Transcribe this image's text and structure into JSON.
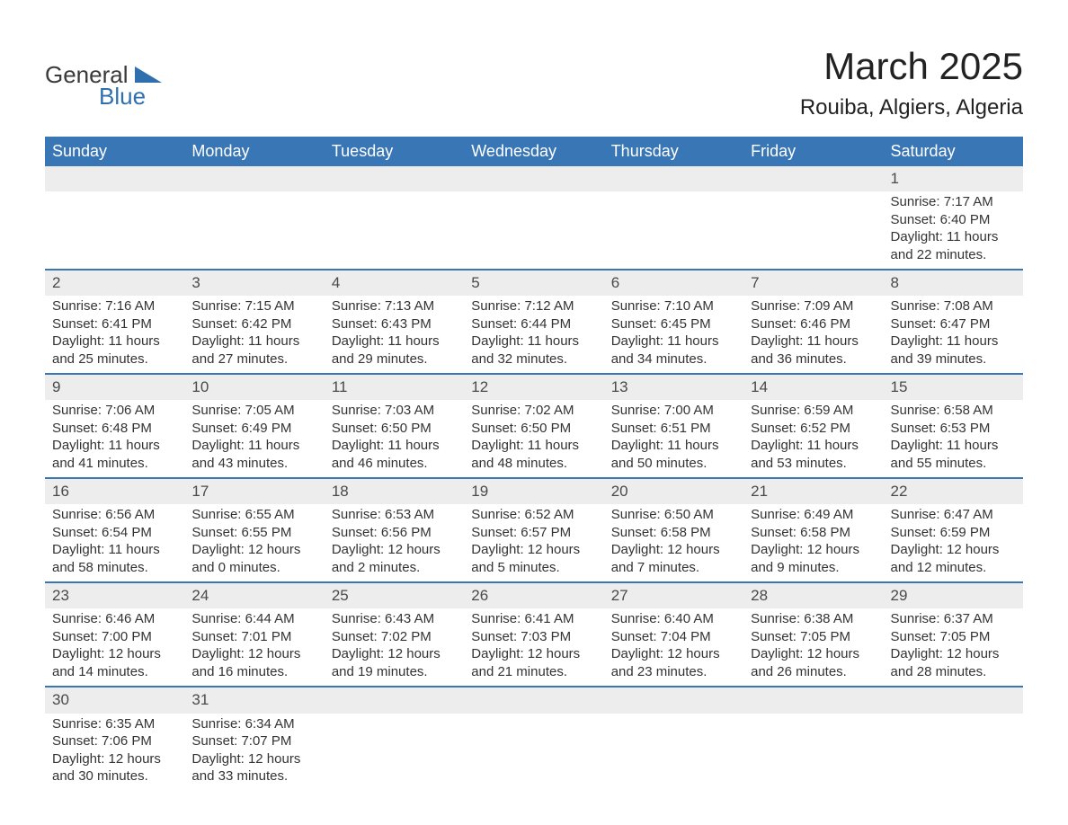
{
  "brand": {
    "word1": "General",
    "word2": "Blue",
    "word1_color": "#3a3a3a",
    "word2_color": "#2f6fae",
    "triangle_color": "#2f6fae"
  },
  "header": {
    "month_title": "March 2025",
    "location": "Rouiba, Algiers, Algeria"
  },
  "calendar": {
    "type": "table",
    "header_bg": "#3876b5",
    "header_fg": "#ffffff",
    "row_divider_color": "#3876b5",
    "daynum_bg": "#ededed",
    "text_color": "#333333",
    "columns": [
      "Sunday",
      "Monday",
      "Tuesday",
      "Wednesday",
      "Thursday",
      "Friday",
      "Saturday"
    ],
    "weeks": [
      [
        null,
        null,
        null,
        null,
        null,
        null,
        {
          "n": "1",
          "sunrise": "Sunrise: 7:17 AM",
          "sunset": "Sunset: 6:40 PM",
          "dl1": "Daylight: 11 hours",
          "dl2": "and 22 minutes."
        }
      ],
      [
        {
          "n": "2",
          "sunrise": "Sunrise: 7:16 AM",
          "sunset": "Sunset: 6:41 PM",
          "dl1": "Daylight: 11 hours",
          "dl2": "and 25 minutes."
        },
        {
          "n": "3",
          "sunrise": "Sunrise: 7:15 AM",
          "sunset": "Sunset: 6:42 PM",
          "dl1": "Daylight: 11 hours",
          "dl2": "and 27 minutes."
        },
        {
          "n": "4",
          "sunrise": "Sunrise: 7:13 AM",
          "sunset": "Sunset: 6:43 PM",
          "dl1": "Daylight: 11 hours",
          "dl2": "and 29 minutes."
        },
        {
          "n": "5",
          "sunrise": "Sunrise: 7:12 AM",
          "sunset": "Sunset: 6:44 PM",
          "dl1": "Daylight: 11 hours",
          "dl2": "and 32 minutes."
        },
        {
          "n": "6",
          "sunrise": "Sunrise: 7:10 AM",
          "sunset": "Sunset: 6:45 PM",
          "dl1": "Daylight: 11 hours",
          "dl2": "and 34 minutes."
        },
        {
          "n": "7",
          "sunrise": "Sunrise: 7:09 AM",
          "sunset": "Sunset: 6:46 PM",
          "dl1": "Daylight: 11 hours",
          "dl2": "and 36 minutes."
        },
        {
          "n": "8",
          "sunrise": "Sunrise: 7:08 AM",
          "sunset": "Sunset: 6:47 PM",
          "dl1": "Daylight: 11 hours",
          "dl2": "and 39 minutes."
        }
      ],
      [
        {
          "n": "9",
          "sunrise": "Sunrise: 7:06 AM",
          "sunset": "Sunset: 6:48 PM",
          "dl1": "Daylight: 11 hours",
          "dl2": "and 41 minutes."
        },
        {
          "n": "10",
          "sunrise": "Sunrise: 7:05 AM",
          "sunset": "Sunset: 6:49 PM",
          "dl1": "Daylight: 11 hours",
          "dl2": "and 43 minutes."
        },
        {
          "n": "11",
          "sunrise": "Sunrise: 7:03 AM",
          "sunset": "Sunset: 6:50 PM",
          "dl1": "Daylight: 11 hours",
          "dl2": "and 46 minutes."
        },
        {
          "n": "12",
          "sunrise": "Sunrise: 7:02 AM",
          "sunset": "Sunset: 6:50 PM",
          "dl1": "Daylight: 11 hours",
          "dl2": "and 48 minutes."
        },
        {
          "n": "13",
          "sunrise": "Sunrise: 7:00 AM",
          "sunset": "Sunset: 6:51 PM",
          "dl1": "Daylight: 11 hours",
          "dl2": "and 50 minutes."
        },
        {
          "n": "14",
          "sunrise": "Sunrise: 6:59 AM",
          "sunset": "Sunset: 6:52 PM",
          "dl1": "Daylight: 11 hours",
          "dl2": "and 53 minutes."
        },
        {
          "n": "15",
          "sunrise": "Sunrise: 6:58 AM",
          "sunset": "Sunset: 6:53 PM",
          "dl1": "Daylight: 11 hours",
          "dl2": "and 55 minutes."
        }
      ],
      [
        {
          "n": "16",
          "sunrise": "Sunrise: 6:56 AM",
          "sunset": "Sunset: 6:54 PM",
          "dl1": "Daylight: 11 hours",
          "dl2": "and 58 minutes."
        },
        {
          "n": "17",
          "sunrise": "Sunrise: 6:55 AM",
          "sunset": "Sunset: 6:55 PM",
          "dl1": "Daylight: 12 hours",
          "dl2": "and 0 minutes."
        },
        {
          "n": "18",
          "sunrise": "Sunrise: 6:53 AM",
          "sunset": "Sunset: 6:56 PM",
          "dl1": "Daylight: 12 hours",
          "dl2": "and 2 minutes."
        },
        {
          "n": "19",
          "sunrise": "Sunrise: 6:52 AM",
          "sunset": "Sunset: 6:57 PM",
          "dl1": "Daylight: 12 hours",
          "dl2": "and 5 minutes."
        },
        {
          "n": "20",
          "sunrise": "Sunrise: 6:50 AM",
          "sunset": "Sunset: 6:58 PM",
          "dl1": "Daylight: 12 hours",
          "dl2": "and 7 minutes."
        },
        {
          "n": "21",
          "sunrise": "Sunrise: 6:49 AM",
          "sunset": "Sunset: 6:58 PM",
          "dl1": "Daylight: 12 hours",
          "dl2": "and 9 minutes."
        },
        {
          "n": "22",
          "sunrise": "Sunrise: 6:47 AM",
          "sunset": "Sunset: 6:59 PM",
          "dl1": "Daylight: 12 hours",
          "dl2": "and 12 minutes."
        }
      ],
      [
        {
          "n": "23",
          "sunrise": "Sunrise: 6:46 AM",
          "sunset": "Sunset: 7:00 PM",
          "dl1": "Daylight: 12 hours",
          "dl2": "and 14 minutes."
        },
        {
          "n": "24",
          "sunrise": "Sunrise: 6:44 AM",
          "sunset": "Sunset: 7:01 PM",
          "dl1": "Daylight: 12 hours",
          "dl2": "and 16 minutes."
        },
        {
          "n": "25",
          "sunrise": "Sunrise: 6:43 AM",
          "sunset": "Sunset: 7:02 PM",
          "dl1": "Daylight: 12 hours",
          "dl2": "and 19 minutes."
        },
        {
          "n": "26",
          "sunrise": "Sunrise: 6:41 AM",
          "sunset": "Sunset: 7:03 PM",
          "dl1": "Daylight: 12 hours",
          "dl2": "and 21 minutes."
        },
        {
          "n": "27",
          "sunrise": "Sunrise: 6:40 AM",
          "sunset": "Sunset: 7:04 PM",
          "dl1": "Daylight: 12 hours",
          "dl2": "and 23 minutes."
        },
        {
          "n": "28",
          "sunrise": "Sunrise: 6:38 AM",
          "sunset": "Sunset: 7:05 PM",
          "dl1": "Daylight: 12 hours",
          "dl2": "and 26 minutes."
        },
        {
          "n": "29",
          "sunrise": "Sunrise: 6:37 AM",
          "sunset": "Sunset: 7:05 PM",
          "dl1": "Daylight: 12 hours",
          "dl2": "and 28 minutes."
        }
      ],
      [
        {
          "n": "30",
          "sunrise": "Sunrise: 6:35 AM",
          "sunset": "Sunset: 7:06 PM",
          "dl1": "Daylight: 12 hours",
          "dl2": "and 30 minutes."
        },
        {
          "n": "31",
          "sunrise": "Sunrise: 6:34 AM",
          "sunset": "Sunset: 7:07 PM",
          "dl1": "Daylight: 12 hours",
          "dl2": "and 33 minutes."
        },
        null,
        null,
        null,
        null,
        null
      ]
    ]
  }
}
